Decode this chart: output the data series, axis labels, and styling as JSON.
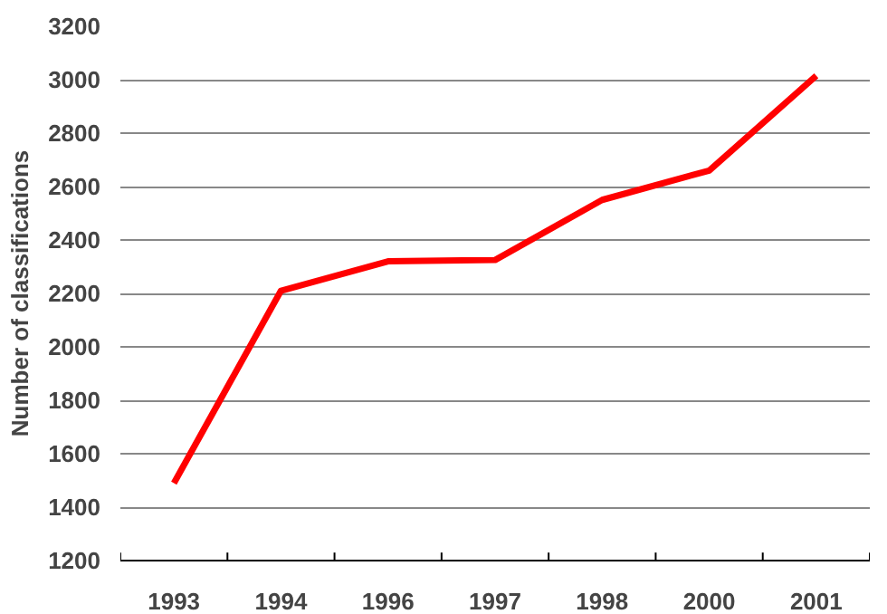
{
  "chart_data": {
    "type": "line",
    "ylabel": "Number of classifications",
    "categories": [
      "1993",
      "1994",
      "1996",
      "1997",
      "1998",
      "2000",
      "2001"
    ],
    "series": [
      {
        "color": "#ff0000",
        "values": [
          1490,
          2210,
          2320,
          2325,
          2550,
          2660,
          3015
        ]
      }
    ],
    "ylim": [
      1200,
      3200
    ],
    "yticks": [
      1200,
      1400,
      1600,
      1800,
      2000,
      2200,
      2400,
      2600,
      2800,
      3000,
      3200
    ],
    "grid": "y",
    "marker": "none",
    "line_style": "solid"
  }
}
